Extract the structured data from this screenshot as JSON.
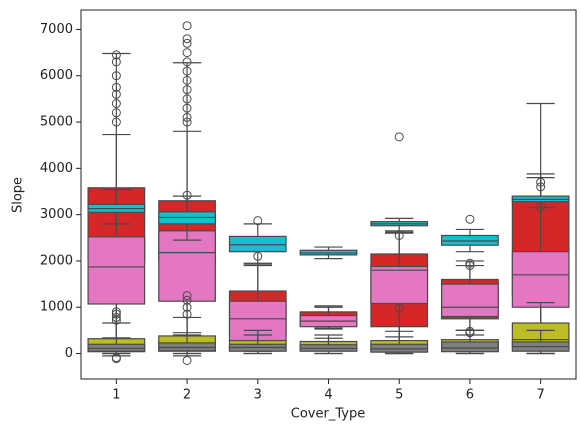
{
  "chart_data": {
    "type": "box",
    "xlabel": "Cover_Type",
    "ylabel": "Slope",
    "categories": [
      "1",
      "2",
      "3",
      "4",
      "5",
      "6",
      "7"
    ],
    "ylim": [
      -550,
      7420
    ],
    "yticks": [
      0,
      1000,
      2000,
      3000,
      4000,
      5000,
      6000,
      7000
    ],
    "series": [
      {
        "color": "#d62728",
        "values": [
          [
            300,
            2000,
            2330,
            3580,
            4730
          ],
          [
            400,
            2000,
            2800,
            3300,
            4800
          ],
          [
            100,
            420,
            1100,
            1350,
            1900
          ],
          [
            550,
            600,
            750,
            900,
            1030
          ],
          [
            100,
            580,
            1450,
            2150,
            2650
          ],
          [
            500,
            750,
            1100,
            1600,
            2000
          ],
          [
            300,
            1250,
            2200,
            3400,
            5400
          ]
        ],
        "outliers": [
          [
            5000,
            5200,
            5400,
            5600,
            5750,
            6000,
            6300,
            6450
          ],
          [
            5000,
            5100,
            5300,
            5500,
            5700,
            5900,
            6100,
            6300,
            6500,
            6700,
            6800,
            7080
          ],
          [],
          [],
          [
            980
          ],
          [
            1900,
            1950
          ],
          []
        ]
      },
      {
        "color": "#e377c2",
        "values": [
          [
            0,
            1070,
            1870,
            2520,
            6480
          ],
          [
            0,
            1130,
            2180,
            2650,
            6280
          ],
          [
            50,
            280,
            750,
            1130,
            1950
          ],
          [
            530,
            580,
            700,
            820,
            1000
          ],
          [
            0,
            1080,
            1800,
            1880,
            2600
          ],
          [
            500,
            800,
            1000,
            1500,
            1900
          ],
          [
            0,
            1000,
            1700,
            2200,
            3800
          ]
        ],
        "outliers": [
          [],
          [],
          [],
          [],
          [],
          [
            450,
            480
          ],
          []
        ]
      },
      {
        "color": "#17becf",
        "values": [
          [
            2800,
            3050,
            3130,
            3220,
            3540
          ],
          [
            2450,
            2800,
            2940,
            3060,
            3400
          ],
          [
            1930,
            2200,
            2350,
            2530,
            2800
          ],
          [
            2050,
            2130,
            2170,
            2230,
            2300
          ],
          [
            2620,
            2760,
            2800,
            2850,
            2920
          ],
          [
            2200,
            2340,
            2430,
            2550,
            2680
          ],
          [
            3150,
            3280,
            3330,
            3400,
            3880
          ]
        ],
        "outliers": [
          [],
          [
            3420
          ],
          [
            2870,
            2100
          ],
          [],
          [
            4680,
            2550
          ],
          [
            2900
          ],
          [
            3700,
            3600,
            3170
          ]
        ]
      },
      {
        "color": "#bcbd22",
        "values": [
          [
            -50,
            40,
            150,
            320,
            660
          ],
          [
            -50,
            50,
            160,
            380,
            780
          ],
          [
            0,
            80,
            150,
            280,
            500
          ],
          [
            0,
            60,
            150,
            260,
            400
          ],
          [
            0,
            40,
            130,
            280,
            480
          ],
          [
            0,
            50,
            150,
            300,
            500
          ],
          [
            0,
            100,
            300,
            660,
            1100
          ]
        ],
        "outliers": [
          [
            720,
            780,
            850,
            900,
            -90,
            -110
          ],
          [
            850,
            1000,
            1150,
            1250,
            -150
          ],
          [],
          [],
          [],
          [],
          []
        ]
      },
      {
        "color": "#7f7f7f",
        "values": [
          [
            0,
            50,
            110,
            200,
            340
          ],
          [
            0,
            60,
            130,
            230,
            450
          ],
          [
            0,
            50,
            130,
            200,
            400
          ],
          [
            0,
            50,
            110,
            190,
            330
          ],
          [
            0,
            30,
            100,
            200,
            360
          ],
          [
            0,
            40,
            120,
            250,
            400
          ],
          [
            0,
            50,
            150,
            250,
            500
          ]
        ],
        "outliers": [
          [],
          [],
          [],
          [],
          [],
          [],
          []
        ]
      }
    ]
  }
}
